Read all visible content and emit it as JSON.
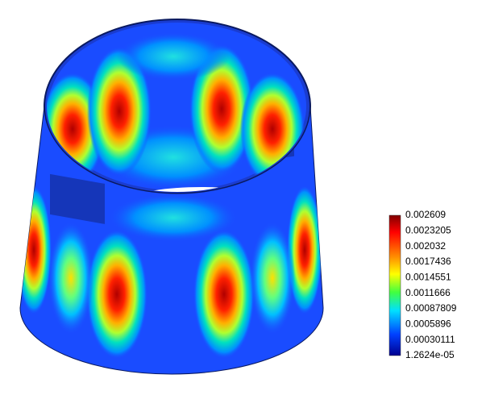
{
  "colorbar": {
    "labels": [
      "0.002609",
      "0.0023205",
      "0.002032",
      "0.0017436",
      "0.0014551",
      "0.0011666",
      "0.00087809",
      "0.0005896",
      "0.00030111",
      "1.2624e-05"
    ]
  }
}
